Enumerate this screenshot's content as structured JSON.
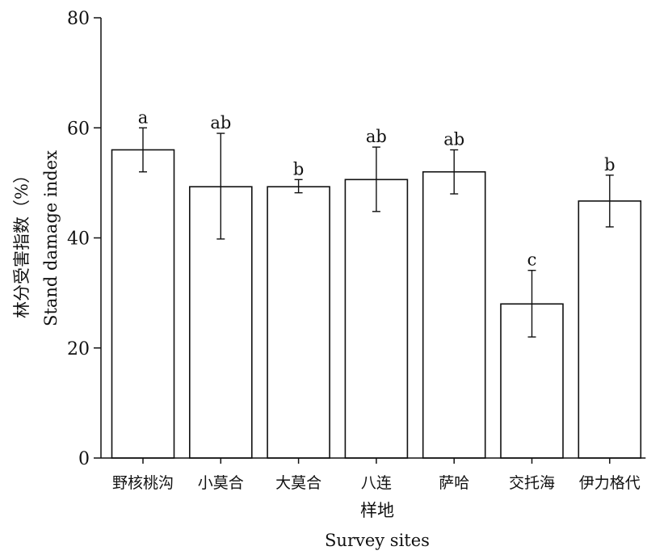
{
  "chart_data": {
    "type": "bar",
    "categories": [
      "野核桃沟",
      "小莫合",
      "大莫合",
      "八连",
      "萨哈",
      "交托海",
      "伊力格代"
    ],
    "series": [
      {
        "values": [
          56,
          49.3,
          49.3,
          50.6,
          52,
          28,
          46.7
        ],
        "error_low": [
          52,
          39.8,
          48.2,
          44.8,
          48,
          22,
          42
        ],
        "error_high": [
          60,
          59,
          50.6,
          56.5,
          56,
          34.1,
          51.4
        ],
        "significance": [
          "a",
          "ab",
          "b",
          "ab",
          "ab",
          "c",
          "b"
        ]
      }
    ],
    "ylabel_cn": "林分受害指数（%）",
    "ylabel_en": "Stand damage index",
    "xlabel_cn": "样地",
    "xlabel_en": "Survey sites",
    "ylim": [
      0,
      80
    ],
    "yticks": [
      0,
      20,
      40,
      60,
      80
    ],
    "grid": false,
    "legend": "none",
    "colors": {
      "bar_fill": "#ffffff",
      "bar_stroke": "#111111",
      "axis": "#111111"
    }
  }
}
